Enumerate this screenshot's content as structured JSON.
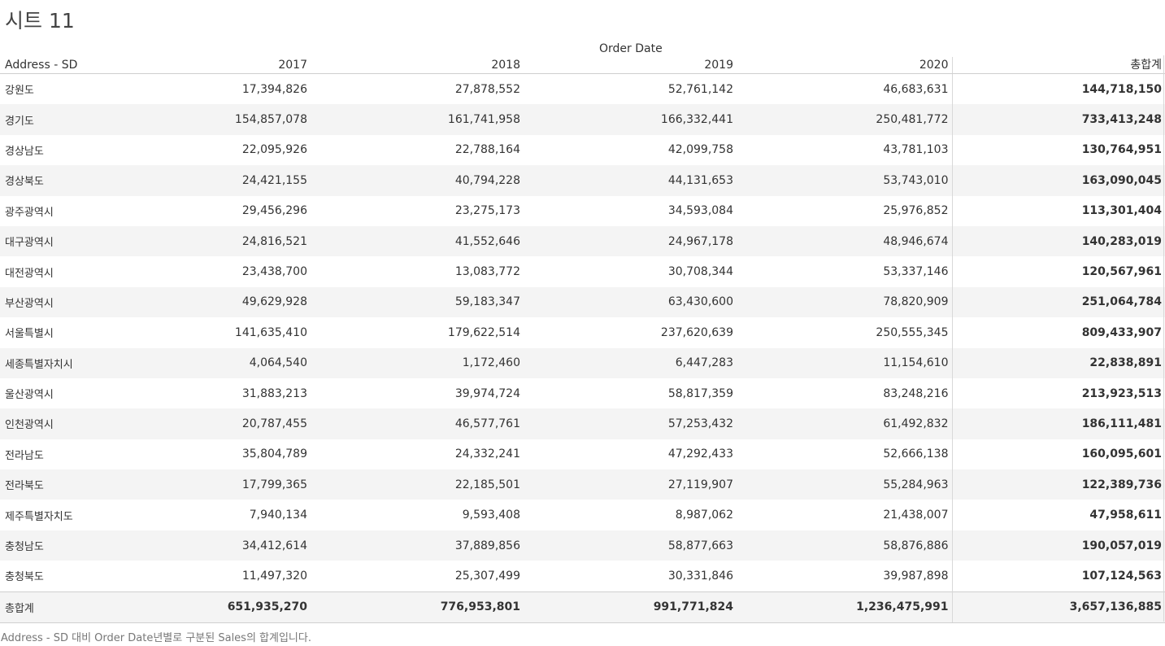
{
  "sheet": {
    "title": "시트 11",
    "caption": "Address - SD 대비 Order Date년별로 구분된 Sales의 합계입니다."
  },
  "table": {
    "column_group_label": "Order Date",
    "row_dimension_label": "Address - SD",
    "year_columns": [
      "2017",
      "2018",
      "2019",
      "2020"
    ],
    "total_column_label": "총합계",
    "rows": [
      {
        "label": "강원도",
        "values": [
          "17,394,826",
          "27,878,552",
          "52,761,142",
          "46,683,631"
        ],
        "total": "144,718,150"
      },
      {
        "label": "경기도",
        "values": [
          "154,857,078",
          "161,741,958",
          "166,332,441",
          "250,481,772"
        ],
        "total": "733,413,248"
      },
      {
        "label": "경상남도",
        "values": [
          "22,095,926",
          "22,788,164",
          "42,099,758",
          "43,781,103"
        ],
        "total": "130,764,951"
      },
      {
        "label": "경상북도",
        "values": [
          "24,421,155",
          "40,794,228",
          "44,131,653",
          "53,743,010"
        ],
        "total": "163,090,045"
      },
      {
        "label": "광주광역시",
        "values": [
          "29,456,296",
          "23,275,173",
          "34,593,084",
          "25,976,852"
        ],
        "total": "113,301,404"
      },
      {
        "label": "대구광역시",
        "values": [
          "24,816,521",
          "41,552,646",
          "24,967,178",
          "48,946,674"
        ],
        "total": "140,283,019"
      },
      {
        "label": "대전광역시",
        "values": [
          "23,438,700",
          "13,083,772",
          "30,708,344",
          "53,337,146"
        ],
        "total": "120,567,961"
      },
      {
        "label": "부산광역시",
        "values": [
          "49,629,928",
          "59,183,347",
          "63,430,600",
          "78,820,909"
        ],
        "total": "251,064,784"
      },
      {
        "label": "서울특별시",
        "values": [
          "141,635,410",
          "179,622,514",
          "237,620,639",
          "250,555,345"
        ],
        "total": "809,433,907"
      },
      {
        "label": "세종특별자치시",
        "values": [
          "4,064,540",
          "1,172,460",
          "6,447,283",
          "11,154,610"
        ],
        "total": "22,838,891"
      },
      {
        "label": "울산광역시",
        "values": [
          "31,883,213",
          "39,974,724",
          "58,817,359",
          "83,248,216"
        ],
        "total": "213,923,513"
      },
      {
        "label": "인천광역시",
        "values": [
          "20,787,455",
          "46,577,761",
          "57,253,432",
          "61,492,832"
        ],
        "total": "186,111,481"
      },
      {
        "label": "전라남도",
        "values": [
          "35,804,789",
          "24,332,241",
          "47,292,433",
          "52,666,138"
        ],
        "total": "160,095,601"
      },
      {
        "label": "전라북도",
        "values": [
          "17,799,365",
          "22,185,501",
          "27,119,907",
          "55,284,963"
        ],
        "total": "122,389,736"
      },
      {
        "label": "제주특별자치도",
        "values": [
          "7,940,134",
          "9,593,408",
          "8,987,062",
          "21,438,007"
        ],
        "total": "47,958,611"
      },
      {
        "label": "충청남도",
        "values": [
          "34,412,614",
          "37,889,856",
          "58,877,663",
          "58,876,886"
        ],
        "total": "190,057,019"
      },
      {
        "label": "충청북도",
        "values": [
          "11,497,320",
          "25,307,499",
          "30,331,846",
          "39,987,898"
        ],
        "total": "107,124,563"
      }
    ],
    "grand_total_row": {
      "label": "총합계",
      "values": [
        "651,935,270",
        "776,953,801",
        "991,771,824",
        "1,236,475,991"
      ],
      "total": "3,657,136,885"
    }
  }
}
